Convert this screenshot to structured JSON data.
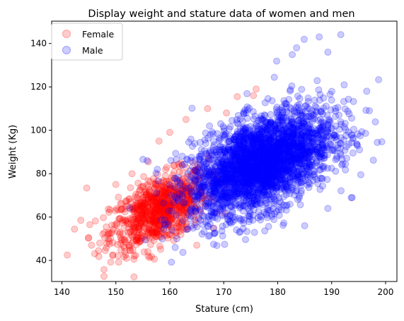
{
  "chart_data": {
    "type": "scatter",
    "title": "Display weight and stature data of women and men",
    "xlabel": "Stature (cm)",
    "ylabel": "Weight (Kg)",
    "xlim": [
      138.1,
      202.1
    ],
    "ylim": [
      30.3,
      150.3
    ],
    "xticks": [
      140,
      150,
      160,
      170,
      180,
      190,
      200
    ],
    "yticks": [
      40,
      60,
      80,
      100,
      120,
      140
    ],
    "grid": false,
    "legend_position": "upper-left",
    "series": [
      {
        "name": "Female",
        "color": "#ff0000",
        "alpha": 0.2,
        "distribution": {
          "count": 900,
          "x_mean": 158,
          "x_sd": 4.5,
          "y_mean": 63,
          "y_sd": 9,
          "correlation": 0.55
        },
        "points": [
          [
            141,
            42.5
          ],
          [
            147.8,
            35.8
          ],
          [
            144.6,
            73.4
          ],
          [
            143.5,
            58.5
          ],
          [
            150,
            75
          ],
          [
            153,
            80
          ],
          [
            158,
            95
          ],
          [
            160,
            99
          ],
          [
            163,
            105
          ],
          [
            167,
            110
          ],
          [
            170.5,
            108
          ],
          [
            172.5,
            115.5
          ],
          [
            175.5,
            116
          ],
          [
            176,
            119
          ],
          [
            145.5,
            47
          ],
          [
            147,
            48
          ],
          [
            146.8,
            44.5
          ],
          [
            156,
            42
          ],
          [
            160,
            52
          ],
          [
            165,
            47
          ]
        ]
      },
      {
        "name": "Male",
        "color": "#0000ff",
        "alpha": 0.2,
        "distribution": {
          "count": 3000,
          "x_mean": 177,
          "x_sd": 6.5,
          "y_mean": 85,
          "y_sd": 12,
          "correlation": 0.5
        },
        "points": [
          [
            191.7,
            144.1
          ],
          [
            187.7,
            143
          ],
          [
            184.9,
            141.9
          ],
          [
            183.5,
            138
          ],
          [
            189.3,
            136
          ],
          [
            182.7,
            134.9
          ],
          [
            179.8,
            131.9
          ],
          [
            160.3,
            39.2
          ],
          [
            161,
            46
          ],
          [
            155.8,
            86
          ],
          [
            157.7,
            82
          ],
          [
            193.8,
            69
          ],
          [
            185,
            56
          ],
          [
            189.3,
            64
          ],
          [
            199.3,
            94.7
          ],
          [
            198.1,
            103.9
          ],
          [
            197,
            109
          ],
          [
            190,
            113.9
          ],
          [
            198.7,
            123.3
          ],
          [
            196.5,
            118
          ],
          [
            169.8,
            51.3
          ],
          [
            176.8,
            58.7
          ]
        ]
      }
    ],
    "legend": [
      {
        "label": "Female",
        "color": "#ff0000"
      },
      {
        "label": "Male",
        "color": "#0000ff"
      }
    ]
  }
}
